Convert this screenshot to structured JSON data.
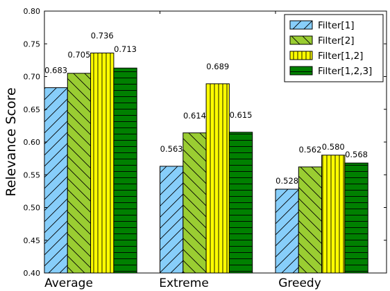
{
  "chart_data": {
    "type": "bar",
    "title": "",
    "xlabel": "",
    "ylabel": "Relevance Score",
    "ylim": [
      0.4,
      0.8
    ],
    "yticks": [
      "0.40",
      "0.45",
      "0.50",
      "0.55",
      "0.60",
      "0.65",
      "0.70",
      "0.75",
      "0.80"
    ],
    "categories": [
      "Average",
      "Extreme",
      "Greedy"
    ],
    "series": [
      {
        "name": "Filter[1]",
        "values": [
          0.683,
          0.563,
          0.528
        ],
        "labels": [
          "0.683",
          "0.563",
          "0.528"
        ],
        "color": "#87CEFA",
        "hatch": "forward-diagonal"
      },
      {
        "name": "Filter[2]",
        "values": [
          0.705,
          0.614,
          0.562
        ],
        "labels": [
          "0.705",
          "0.614",
          "0.562"
        ],
        "color": "#9ACD32",
        "hatch": "back-diagonal"
      },
      {
        "name": "Filter[1,2]",
        "values": [
          0.736,
          0.689,
          0.58
        ],
        "labels": [
          "0.736",
          "0.689",
          "0.580"
        ],
        "color": "#FFFF00",
        "hatch": "vertical"
      },
      {
        "name": "Filter[1,2,3]",
        "values": [
          0.713,
          0.615,
          0.568
        ],
        "labels": [
          "0.713",
          "0.615",
          "0.568"
        ],
        "color": "#008000",
        "hatch": "horizontal"
      }
    ],
    "legend_position": "top-right",
    "grid": false
  }
}
